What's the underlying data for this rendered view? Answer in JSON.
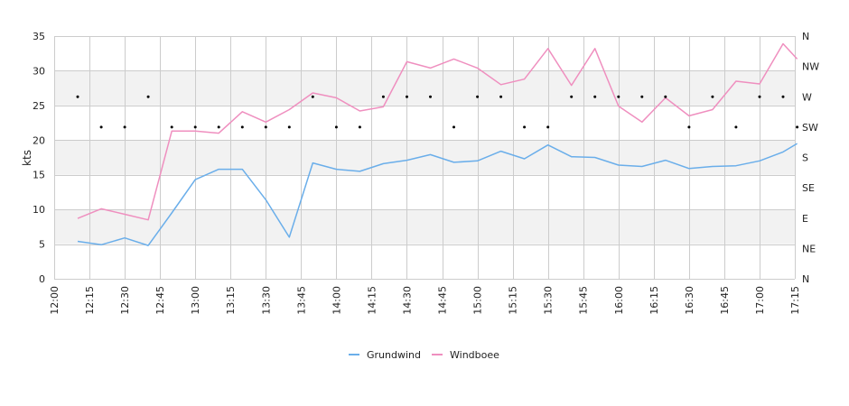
{
  "chart_data": {
    "type": "line",
    "ylabel": "kts",
    "ylim": [
      0,
      35
    ],
    "y_ticks": [
      "0",
      "5",
      "10",
      "15",
      "20",
      "25",
      "30",
      "35"
    ],
    "x_labels": [
      "12:00",
      "12:15",
      "12:30",
      "12:45",
      "13:00",
      "13:15",
      "13:30",
      "13:45",
      "14:00",
      "14:15",
      "14:30",
      "14:45",
      "15:00",
      "15:15",
      "15:30",
      "15:45",
      "16:00",
      "16:15",
      "16:30",
      "16:45",
      "17:00",
      "17:15"
    ],
    "x_minutes_range": [
      0,
      315
    ],
    "right_axis_labels": [
      "N",
      "NE",
      "E",
      "SE",
      "S",
      "SW",
      "W",
      "NW",
      "N"
    ],
    "bands": [
      [
        5,
        10
      ],
      [
        15,
        20
      ],
      [
        25,
        30
      ]
    ],
    "grid": true,
    "legend": "bottom-center",
    "colors": {
      "Grundwind": "#6aaeea",
      "Windboee": "#ef8fbf",
      "band": "#f2f2f2",
      "grid": "#cccccc"
    },
    "series": [
      {
        "name": "Grundwind",
        "x": [
          "12:10",
          "12:20",
          "12:30",
          "12:40",
          "12:50",
          "13:00",
          "13:10",
          "13:20",
          "13:30",
          "13:40",
          "13:50",
          "14:00",
          "14:10",
          "14:20",
          "14:30",
          "14:40",
          "14:50",
          "15:00",
          "15:10",
          "15:20",
          "15:30",
          "15:40",
          "15:50",
          "16:00",
          "16:10",
          "16:20",
          "16:30",
          "16:40",
          "16:50",
          "17:00",
          "17:10",
          "17:16"
        ],
        "values": [
          5.4,
          4.9,
          5.9,
          4.8,
          9.5,
          14.3,
          15.8,
          15.8,
          11.4,
          6.0,
          16.7,
          15.8,
          15.5,
          16.6,
          17.1,
          17.9,
          16.8,
          17.0,
          18.4,
          17.3,
          19.3,
          17.6,
          17.5,
          16.4,
          16.2,
          17.1,
          15.9,
          16.2,
          16.3,
          17.0,
          18.3,
          19.5
        ]
      },
      {
        "name": "Windboee",
        "x": [
          "12:10",
          "12:20",
          "12:30",
          "12:40",
          "12:50",
          "13:00",
          "13:10",
          "13:20",
          "13:30",
          "13:40",
          "13:50",
          "14:00",
          "14:10",
          "14:20",
          "14:30",
          "14:40",
          "14:50",
          "15:00",
          "15:10",
          "15:20",
          "15:30",
          "15:40",
          "15:50",
          "16:00",
          "16:10",
          "16:20",
          "16:30",
          "16:40",
          "16:50",
          "17:00",
          "17:10",
          "17:16"
        ],
        "values": [
          8.7,
          10.1,
          9.3,
          8.5,
          21.3,
          21.3,
          21.0,
          24.1,
          22.6,
          24.4,
          26.8,
          26.1,
          24.2,
          24.8,
          31.3,
          30.4,
          31.7,
          30.4,
          28.0,
          28.8,
          33.2,
          27.9,
          33.2,
          24.9,
          22.6,
          26.1,
          23.5,
          24.4,
          28.5,
          28.1,
          33.9,
          31.7
        ]
      }
    ],
    "direction": {
      "x": [
        "12:10",
        "12:20",
        "12:30",
        "12:40",
        "12:50",
        "13:00",
        "13:10",
        "13:20",
        "13:30",
        "13:40",
        "13:50",
        "14:00",
        "14:10",
        "14:20",
        "14:30",
        "14:40",
        "14:50",
        "15:00",
        "15:10",
        "15:20",
        "15:30",
        "15:40",
        "15:50",
        "16:00",
        "16:10",
        "16:20",
        "16:30",
        "16:40",
        "16:50",
        "17:00",
        "17:10",
        "17:16"
      ],
      "values": [
        "W",
        "SW",
        "SW",
        "W",
        "SW",
        "SW",
        "SW",
        "SW",
        "SW",
        "SW",
        "W",
        "SW",
        "SW",
        "W",
        "W",
        "W",
        "SW",
        "W",
        "W",
        "SW",
        "SW",
        "W",
        "W",
        "W",
        "W",
        "W",
        "SW",
        "W",
        "SW",
        "W",
        "W",
        "SW"
      ]
    }
  }
}
